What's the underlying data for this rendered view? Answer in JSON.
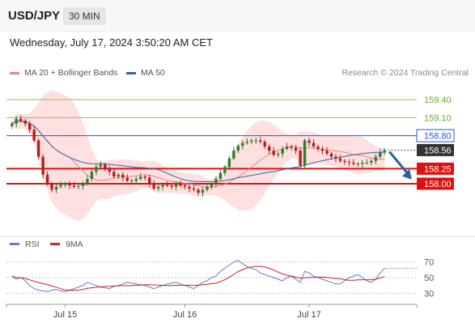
{
  "header": {
    "pair": "USD/JPY",
    "timeframe": "30 MIN"
  },
  "datetime": "Wednesday, July 17, 2024 3:50:20 AM CET",
  "legend": {
    "ma20": "MA 20 + Bollinger Bands",
    "ma50": "MA 50",
    "credit": "Research © 2024 Trading Central"
  },
  "rsi_legend": {
    "rsi": "RSI",
    "ma": "9MA"
  },
  "colors": {
    "up": "#2e7d32",
    "down": "#b71c1c",
    "ma20": "#f08080",
    "ma50": "#3a5fa8",
    "band": "#ffd6d6",
    "resistance_green": "#8bc34a",
    "level_blue": "#2255dd",
    "support_red": "#e01010",
    "arrow": "#2f5f9f"
  },
  "chart_data": {
    "type": "candlestick",
    "ylim": [
      157.15,
      159.55
    ],
    "x_ticks": [
      "Jul 15",
      "Jul 16",
      "Jul 17"
    ],
    "levels": [
      {
        "label": "159.40",
        "value": 159.4,
        "kind": "resistance"
      },
      {
        "label": "159.10",
        "value": 159.1,
        "kind": "resistance"
      },
      {
        "label": "158.80",
        "value": 158.8,
        "kind": "pivot"
      },
      {
        "label": "158.56",
        "value": 158.56,
        "kind": "current"
      },
      {
        "label": "158.25",
        "value": 158.25,
        "kind": "support"
      },
      {
        "label": "158.00",
        "value": 158.0,
        "kind": "support"
      }
    ],
    "close": [
      159.0,
      159.08,
      159.05,
      159.0,
      158.9,
      158.72,
      158.45,
      158.15,
      158.0,
      157.9,
      157.95,
      157.98,
      158.0,
      157.97,
      157.95,
      157.96,
      158.0,
      158.08,
      158.2,
      158.28,
      158.32,
      158.25,
      158.2,
      158.12,
      158.15,
      158.1,
      158.05,
      158.05,
      158.08,
      158.12,
      158.1,
      158.0,
      157.92,
      157.95,
      157.98,
      157.97,
      157.95,
      158.0,
      157.97,
      157.95,
      157.92,
      157.9,
      157.85,
      157.9,
      157.95,
      158.0,
      158.08,
      158.18,
      158.28,
      158.42,
      158.55,
      158.63,
      158.68,
      158.7,
      158.72,
      158.72,
      158.7,
      158.62,
      158.55,
      158.48,
      158.5,
      158.58,
      158.62,
      158.6,
      158.55,
      158.3,
      158.72,
      158.68,
      158.62,
      158.58,
      158.55,
      158.5,
      158.45,
      158.42,
      158.38,
      158.36,
      158.35,
      158.33,
      158.33,
      158.35,
      158.35,
      158.38,
      158.45,
      158.52,
      158.56
    ],
    "rsi": [
      52,
      48,
      50,
      46,
      40,
      36,
      34,
      33,
      32,
      34,
      35,
      33,
      32,
      34,
      36,
      38,
      40,
      44,
      42,
      40,
      38,
      37,
      36,
      39,
      40,
      42,
      44,
      43,
      42,
      41,
      40,
      38,
      36,
      38,
      40,
      42,
      43,
      44,
      42,
      40,
      38,
      36,
      40,
      44,
      46,
      50,
      52,
      58,
      62,
      66,
      70,
      72,
      68,
      64,
      62,
      60,
      56,
      54,
      52,
      50,
      48,
      46,
      50,
      52,
      48,
      44,
      58,
      56,
      52,
      50,
      48,
      46,
      44,
      42,
      42,
      46,
      50,
      52,
      54,
      50,
      46,
      44,
      48,
      56,
      62
    ],
    "rsi_ylim": [
      20,
      78
    ],
    "rsi_ticks": [
      70,
      50,
      30
    ]
  }
}
